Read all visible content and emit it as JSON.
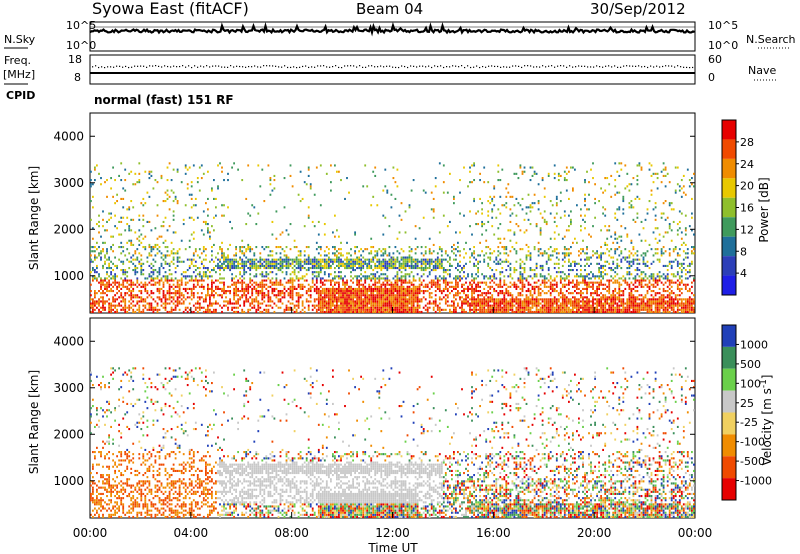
{
  "header": {
    "title": "Syowa East (fitACF)",
    "beam": "Beam 04",
    "date": "30/Sep/2012"
  },
  "labels": {
    "nsky": "N.Sky",
    "nsearch": "N.Search",
    "freq": "Freq.",
    "mhz": "[MHz]",
    "cpid": "CPID",
    "nave": "Nave",
    "mode": "normal (fast) 151 RF"
  },
  "chart_data": [
    {
      "type": "line",
      "name": "noise-panel",
      "left_label": "N.Sky",
      "right_label": "N.Search",
      "left_ticks": [
        "10^5",
        "10^0"
      ],
      "right_ticks": [
        "10^5",
        "10^0"
      ]
    },
    {
      "type": "scatter",
      "name": "frequency-nave-panel",
      "left_label": "Freq. [MHz]",
      "right_label": "Nave",
      "left_ticks": [
        "18",
        "8"
      ],
      "right_ticks": [
        "60",
        "0"
      ]
    },
    {
      "type": "heatmap",
      "name": "power-panel",
      "ylabel": "Slant Range [km]",
      "xlabel": "Time UT",
      "xlim": [
        0,
        24
      ],
      "ylim": [
        200,
        4500
      ],
      "y_ticks": [
        {
          "value": 1000,
          "label": "1000"
        },
        {
          "value": 2000,
          "label": "2000"
        },
        {
          "value": 3000,
          "label": "3000"
        },
        {
          "value": 4000,
          "label": "4000"
        }
      ],
      "colorbar": {
        "label": "Power [dB]",
        "ticks": [
          "28",
          "24",
          "20",
          "16",
          "12",
          "8",
          "4"
        ],
        "colors": [
          "#e60000",
          "#f04a00",
          "#f08c00",
          "#e8c800",
          "#8fbf2c",
          "#3f9a5c",
          "#1f6f9a",
          "#2c3fb8",
          "#1f1fe6"
        ]
      }
    },
    {
      "type": "heatmap",
      "name": "velocity-panel",
      "ylabel": "Slant Range [km]",
      "xlabel": "Time UT",
      "xlim": [
        0,
        24
      ],
      "ylim": [
        200,
        4500
      ],
      "y_ticks": [
        {
          "value": 1000,
          "label": "1000"
        },
        {
          "value": 2000,
          "label": "2000"
        },
        {
          "value": 3000,
          "label": "3000"
        },
        {
          "value": 4000,
          "label": "4000"
        }
      ],
      "x_ticks": [
        "00:00",
        "04:00",
        "08:00",
        "12:00",
        "16:00",
        "20:00",
        "00:00"
      ],
      "colorbar": {
        "label": "Velocity [m s^-1]",
        "ticks": [
          "1000",
          "500",
          "100",
          "25",
          "-25",
          "-100",
          "-500",
          "-1000"
        ],
        "colors": [
          "#2040b8",
          "#3a8f5a",
          "#6ad04a",
          "#c8c8c8",
          "#f0d060",
          "#f08c00",
          "#f04a00",
          "#e60000"
        ]
      }
    }
  ]
}
